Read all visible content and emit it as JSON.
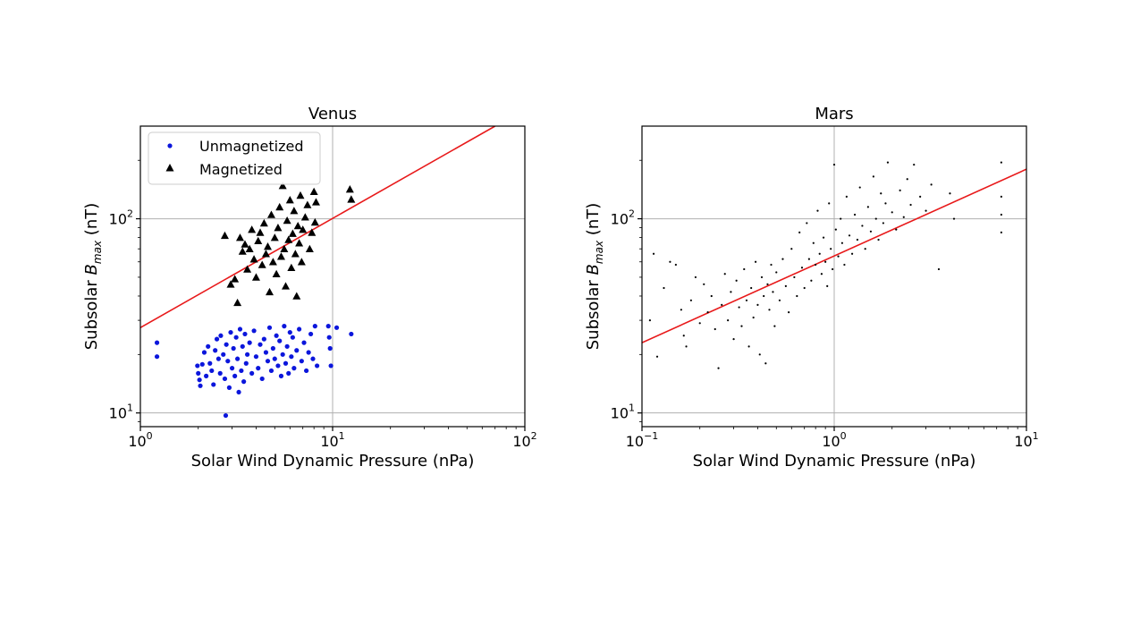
{
  "chart_data": [
    {
      "type": "scatter",
      "title": "Venus",
      "xlabel": "Solar Wind Dynamic Pressure (nPa)",
      "ylabel": {
        "prefix": "Subsolar ",
        "symbol": "B",
        "subscript": "max",
        "suffix": " (nT)"
      },
      "xscale": "log",
      "yscale": "log",
      "xlim": [
        1,
        100
      ],
      "ylim": [
        8.5,
        300
      ],
      "xticks": [
        {
          "base": "10",
          "exp": "0",
          "value": 1
        },
        {
          "base": "10",
          "exp": "1",
          "value": 10
        },
        {
          "base": "10",
          "exp": "2",
          "value": 100
        }
      ],
      "yticks": [
        {
          "base": "10",
          "exp": "1",
          "value": 10
        },
        {
          "base": "10",
          "exp": "2",
          "value": 100
        }
      ],
      "grid": true,
      "legend_position": "upper-left",
      "fit_line": {
        "color": "#e8191a",
        "points": [
          [
            1,
            27.5
          ],
          [
            70,
            300
          ]
        ]
      },
      "series": [
        {
          "name": "Unmagnetized",
          "marker": "circle",
          "color": "#0b16dc",
          "points": [
            [
              1.22,
              23.0
            ],
            [
              1.22,
              19.5
            ],
            [
              1.98,
              17.5
            ],
            [
              2.0,
              16.0
            ],
            [
              2.03,
              14.8
            ],
            [
              2.05,
              13.8
            ],
            [
              2.1,
              17.8
            ],
            [
              2.15,
              20.5
            ],
            [
              2.2,
              15.5
            ],
            [
              2.25,
              22.0
            ],
            [
              2.3,
              18.0
            ],
            [
              2.35,
              16.5
            ],
            [
              2.4,
              14.0
            ],
            [
              2.45,
              21.0
            ],
            [
              2.5,
              24.0
            ],
            [
              2.55,
              19.0
            ],
            [
              2.6,
              16.0
            ],
            [
              2.62,
              25.0
            ],
            [
              2.7,
              20.0
            ],
            [
              2.75,
              15.0
            ],
            [
              2.78,
              9.7
            ],
            [
              2.8,
              22.5
            ],
            [
              2.85,
              18.5
            ],
            [
              2.9,
              13.5
            ],
            [
              2.95,
              26.0
            ],
            [
              3.0,
              17.0
            ],
            [
              3.05,
              21.5
            ],
            [
              3.1,
              15.5
            ],
            [
              3.15,
              24.5
            ],
            [
              3.2,
              19.0
            ],
            [
              3.25,
              12.8
            ],
            [
              3.3,
              27.0
            ],
            [
              3.35,
              16.5
            ],
            [
              3.4,
              22.0
            ],
            [
              3.45,
              14.5
            ],
            [
              3.5,
              25.5
            ],
            [
              3.55,
              18.0
            ],
            [
              3.6,
              20.0
            ],
            [
              3.7,
              23.0
            ],
            [
              3.8,
              16.0
            ],
            [
              3.9,
              26.5
            ],
            [
              4.0,
              19.5
            ],
            [
              4.1,
              17.0
            ],
            [
              4.2,
              22.5
            ],
            [
              4.3,
              15.0
            ],
            [
              4.4,
              24.0
            ],
            [
              4.5,
              20.5
            ],
            [
              4.6,
              18.5
            ],
            [
              4.7,
              27.5
            ],
            [
              4.8,
              16.5
            ],
            [
              4.9,
              21.5
            ],
            [
              5.0,
              19.0
            ],
            [
              5.1,
              25.0
            ],
            [
              5.2,
              17.5
            ],
            [
              5.3,
              23.5
            ],
            [
              5.4,
              15.5
            ],
            [
              5.5,
              20.0
            ],
            [
              5.6,
              28.0
            ],
            [
              5.7,
              18.0
            ],
            [
              5.8,
              22.0
            ],
            [
              5.9,
              16.0
            ],
            [
              6.0,
              26.0
            ],
            [
              6.1,
              19.5
            ],
            [
              6.2,
              24.5
            ],
            [
              6.3,
              17.0
            ],
            [
              6.5,
              21.0
            ],
            [
              6.7,
              27.0
            ],
            [
              6.9,
              18.5
            ],
            [
              7.1,
              23.0
            ],
            [
              7.3,
              16.5
            ],
            [
              7.5,
              20.5
            ],
            [
              7.7,
              25.5
            ],
            [
              7.9,
              19.0
            ],
            [
              8.1,
              28.0
            ],
            [
              8.3,
              17.5
            ],
            [
              9.5,
              28.0
            ],
            [
              9.6,
              24.5
            ],
            [
              9.7,
              21.5
            ],
            [
              9.8,
              17.5
            ],
            [
              10.5,
              27.5
            ],
            [
              12.5,
              25.5
            ]
          ]
        },
        {
          "name": "Magnetized",
          "marker": "triangle",
          "color": "#000000",
          "points": [
            [
              2.75,
              82.0
            ],
            [
              2.95,
              46.0
            ],
            [
              3.1,
              49.0
            ],
            [
              3.2,
              37.0
            ],
            [
              3.3,
              80.0
            ],
            [
              3.4,
              68.0
            ],
            [
              3.5,
              74.0
            ],
            [
              3.6,
              55.0
            ],
            [
              3.7,
              70.0
            ],
            [
              3.8,
              88.0
            ],
            [
              3.9,
              62.0
            ],
            [
              4.0,
              50.0
            ],
            [
              4.1,
              77.0
            ],
            [
              4.2,
              85.0
            ],
            [
              4.3,
              58.0
            ],
            [
              4.4,
              95.0
            ],
            [
              4.5,
              66.0
            ],
            [
              4.6,
              72.0
            ],
            [
              4.7,
              42.0
            ],
            [
              4.8,
              105.0
            ],
            [
              4.9,
              60.0
            ],
            [
              5.0,
              80.0
            ],
            [
              5.1,
              52.0
            ],
            [
              5.2,
              90.0
            ],
            [
              5.3,
              115.0
            ],
            [
              5.4,
              64.0
            ],
            [
              5.5,
              148.0
            ],
            [
              5.6,
              70.0
            ],
            [
              5.7,
              45.0
            ],
            [
              5.8,
              98.0
            ],
            [
              5.9,
              78.0
            ],
            [
              6.0,
              125.0
            ],
            [
              6.1,
              56.0
            ],
            [
              6.2,
              84.0
            ],
            [
              6.3,
              110.0
            ],
            [
              6.4,
              66.0
            ],
            [
              6.5,
              40.0
            ],
            [
              6.6,
              92.0
            ],
            [
              6.7,
              75.0
            ],
            [
              6.8,
              132.0
            ],
            [
              6.9,
              60.0
            ],
            [
              7.0,
              88.0
            ],
            [
              7.2,
              102.0
            ],
            [
              7.4,
              118.0
            ],
            [
              7.6,
              70.0
            ],
            [
              7.8,
              85.0
            ],
            [
              8.0,
              138.0
            ],
            [
              8.1,
              96.0
            ],
            [
              8.2,
              122.0
            ],
            [
              12.3,
              142.0
            ],
            [
              12.5,
              126.0
            ]
          ]
        }
      ]
    },
    {
      "type": "scatter",
      "title": "Mars",
      "xlabel": "Solar Wind Dynamic Pressure (nPa)",
      "ylabel": {
        "prefix": "Subsolar ",
        "symbol": "B",
        "subscript": "max",
        "suffix": " (nT)"
      },
      "xscale": "log",
      "yscale": "log",
      "xlim": [
        0.1,
        10
      ],
      "ylim": [
        8.5,
        300
      ],
      "xticks": [
        {
          "base": "10",
          "exp": "−1",
          "value": 0.1
        },
        {
          "base": "10",
          "exp": "0",
          "value": 1
        },
        {
          "base": "10",
          "exp": "1",
          "value": 10
        }
      ],
      "yticks": [
        {
          "base": "10",
          "exp": "1",
          "value": 10
        },
        {
          "base": "10",
          "exp": "2",
          "value": 100
        }
      ],
      "grid": true,
      "fit_line": {
        "color": "#e8191a",
        "points": [
          [
            0.1,
            23
          ],
          [
            10,
            180
          ]
        ]
      },
      "series": [
        {
          "marker": "point",
          "color": "#000000",
          "points": [
            [
              0.11,
              30
            ],
            [
              0.115,
              66
            ],
            [
              0.12,
              19.5
            ],
            [
              0.13,
              44
            ],
            [
              0.14,
              60
            ],
            [
              0.15,
              58
            ],
            [
              0.16,
              34
            ],
            [
              0.165,
              25
            ],
            [
              0.17,
              22
            ],
            [
              0.18,
              38
            ],
            [
              0.19,
              50
            ],
            [
              0.2,
              29
            ],
            [
              0.21,
              46
            ],
            [
              0.22,
              33
            ],
            [
              0.23,
              40
            ],
            [
              0.24,
              27
            ],
            [
              0.25,
              17
            ],
            [
              0.26,
              36
            ],
            [
              0.27,
              52
            ],
            [
              0.28,
              30
            ],
            [
              0.29,
              42
            ],
            [
              0.3,
              24
            ],
            [
              0.31,
              48
            ],
            [
              0.32,
              35
            ],
            [
              0.33,
              28
            ],
            [
              0.34,
              55
            ],
            [
              0.35,
              38
            ],
            [
              0.36,
              22
            ],
            [
              0.37,
              44
            ],
            [
              0.38,
              31
            ],
            [
              0.39,
              60
            ],
            [
              0.4,
              36
            ],
            [
              0.41,
              20
            ],
            [
              0.42,
              50
            ],
            [
              0.43,
              40
            ],
            [
              0.44,
              18
            ],
            [
              0.45,
              46
            ],
            [
              0.46,
              34
            ],
            [
              0.47,
              58
            ],
            [
              0.48,
              42
            ],
            [
              0.49,
              28
            ],
            [
              0.5,
              53
            ],
            [
              0.52,
              38
            ],
            [
              0.54,
              62
            ],
            [
              0.56,
              45
            ],
            [
              0.58,
              33
            ],
            [
              0.6,
              70
            ],
            [
              0.62,
              50
            ],
            [
              0.64,
              40
            ],
            [
              0.66,
              85
            ],
            [
              0.68,
              56
            ],
            [
              0.7,
              44
            ],
            [
              0.72,
              95
            ],
            [
              0.74,
              62
            ],
            [
              0.76,
              48
            ],
            [
              0.78,
              75
            ],
            [
              0.8,
              58
            ],
            [
              0.82,
              110
            ],
            [
              0.84,
              66
            ],
            [
              0.86,
              52
            ],
            [
              0.88,
              80
            ],
            [
              0.9,
              60
            ],
            [
              0.92,
              45
            ],
            [
              0.94,
              120
            ],
            [
              0.96,
              70
            ],
            [
              0.98,
              55
            ],
            [
              1.0,
              190
            ],
            [
              1.02,
              88
            ],
            [
              1.05,
              64
            ],
            [
              1.08,
              100
            ],
            [
              1.1,
              75
            ],
            [
              1.13,
              58
            ],
            [
              1.16,
              130
            ],
            [
              1.2,
              82
            ],
            [
              1.24,
              66
            ],
            [
              1.28,
              105
            ],
            [
              1.32,
              78
            ],
            [
              1.36,
              145
            ],
            [
              1.4,
              92
            ],
            [
              1.45,
              70
            ],
            [
              1.5,
              115
            ],
            [
              1.55,
              86
            ],
            [
              1.6,
              165
            ],
            [
              1.65,
              100
            ],
            [
              1.7,
              78
            ],
            [
              1.75,
              135
            ],
            [
              1.8,
              95
            ],
            [
              1.85,
              120
            ],
            [
              1.9,
              195
            ],
            [
              2.0,
              108
            ],
            [
              2.1,
              88
            ],
            [
              2.2,
              140
            ],
            [
              2.3,
              102
            ],
            [
              2.4,
              160
            ],
            [
              2.5,
              118
            ],
            [
              2.6,
              190
            ],
            [
              2.8,
              130
            ],
            [
              3.0,
              110
            ],
            [
              3.2,
              150
            ],
            [
              3.5,
              55
            ],
            [
              4.0,
              135
            ],
            [
              4.2,
              100
            ],
            [
              7.4,
              195
            ],
            [
              7.4,
              130
            ],
            [
              7.4,
              105
            ],
            [
              7.4,
              85
            ]
          ]
        }
      ]
    }
  ]
}
